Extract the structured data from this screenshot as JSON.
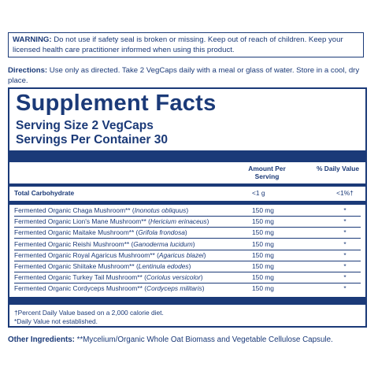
{
  "warning": {
    "label": "WARNING:",
    "text": " Do not use if safety seal is broken or missing. Keep out of reach of children. Keep your licensed health care practitioner informed when using this product."
  },
  "directions": {
    "label": "Directions:",
    "text": " Use only as directed. Take 2 VegCaps daily with a meal or glass of water. Store in a cool, dry place."
  },
  "facts": {
    "title": "Supplement Facts",
    "serving_size": "Serving Size 2 VegCaps",
    "servings_per_container": "Servings Per Container 30",
    "col_amount": "Amount Per Serving",
    "col_dv": "% Daily Value",
    "carb_label": "Total Carbohydrate",
    "carb_amount": "<1 g",
    "carb_dv": "<1%†",
    "ingredients": [
      {
        "name": "Fermented Organic Chaga Mushroom** (",
        "latin": "Inonotus obliquus",
        "close": ")",
        "amount": "150 mg",
        "dv": "*"
      },
      {
        "name": "Fermented Organic Lion's Mane Mushroom** (",
        "latin": "Hericium erinaceus",
        "close": ")",
        "amount": "150 mg",
        "dv": "*"
      },
      {
        "name": "Fermented Organic Maitake Mushroom** (",
        "latin": "Grifola frondosa",
        "close": ")",
        "amount": "150 mg",
        "dv": "*"
      },
      {
        "name": "Fermented Organic Reishi Mushroom** (",
        "latin": "Ganoderma lucidum",
        "close": ")",
        "amount": "150 mg",
        "dv": "*"
      },
      {
        "name": "Fermented Organic Royal Agaricus Mushroom** (",
        "latin": "Agaricus blazei",
        "close": ")",
        "amount": "150 mg",
        "dv": "*"
      },
      {
        "name": "Fermented Organic Shiitake Mushroom** (",
        "latin": "Lentinula edodes",
        "close": ")",
        "amount": "150 mg",
        "dv": "*"
      },
      {
        "name": "Fermented Organic Turkey Tail Mushroom** (",
        "latin": "Coriolus versicolor",
        "close": ")",
        "amount": "150 mg",
        "dv": "*"
      },
      {
        "name": "Fermented Organic Cordyceps Mushroom** (",
        "latin": "Cordyceps militaris",
        "close": ")",
        "amount": "150 mg",
        "dv": "*"
      }
    ],
    "footnote_1": "†Percent Daily Value based on a 2,000 calorie diet.",
    "footnote_2": "*Daily Value not established."
  },
  "other": {
    "label": "Other Ingredients:",
    "text": " **Mycelium/Organic Whole Oat Biomass and Vegetable Cellulose Capsule."
  },
  "colors": {
    "ink": "#1b3a78"
  }
}
